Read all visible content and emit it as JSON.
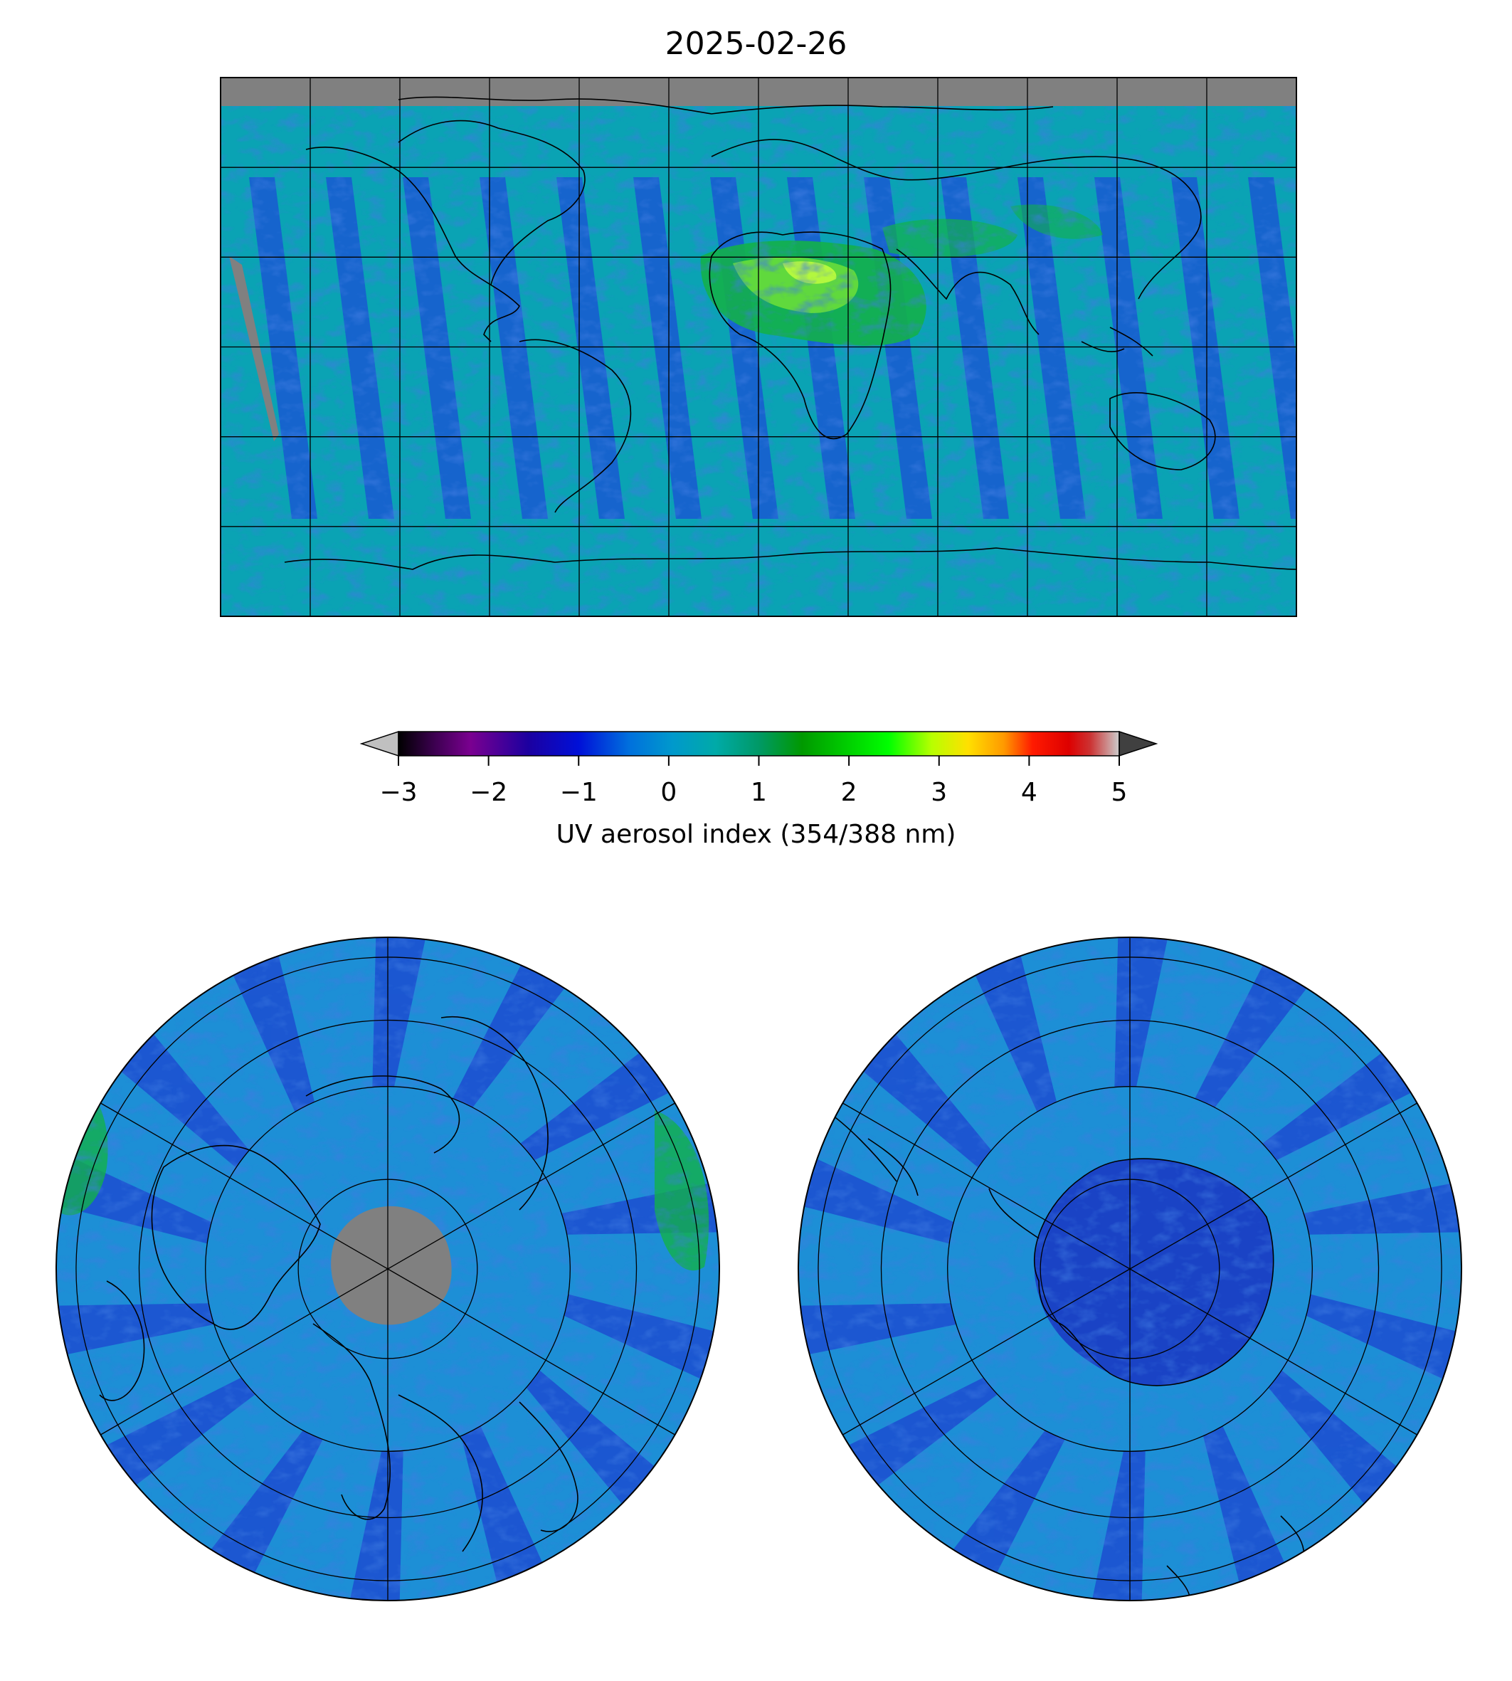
{
  "figure": {
    "title": "2025-02-26"
  },
  "colorbar": {
    "label": "UV aerosol index (354/388 nm)",
    "vmin": -3,
    "vmax": 5,
    "extend": "both",
    "under_color": "#c0c0c0",
    "over_color": "#404040",
    "ticks": [
      {
        "value": -3,
        "label": "−3"
      },
      {
        "value": -2,
        "label": "−2"
      },
      {
        "value": -1,
        "label": "−1"
      },
      {
        "value": 0,
        "label": "0"
      },
      {
        "value": 1,
        "label": "1"
      },
      {
        "value": 2,
        "label": "2"
      },
      {
        "value": 3,
        "label": "3"
      },
      {
        "value": 4,
        "label": "4"
      },
      {
        "value": 5,
        "label": "5"
      }
    ],
    "colormap": "nipy_spectral"
  },
  "maps": {
    "global": {
      "projection": "plate-carree",
      "no_data_color": "#808080",
      "grid": true
    },
    "north_polar": {
      "projection": "north-polar-stereographic",
      "no_data_color": "#808080",
      "grid": true
    },
    "south_polar": {
      "projection": "south-polar-stereographic",
      "grid": true
    }
  },
  "colors": {
    "background_field": "#0aa3b4",
    "low_field": "#1b4fd6",
    "very_low_field": "#1c1ca8",
    "moderate_field": "#13b04a",
    "high_field": "#9aef3a",
    "coastline": "#000000"
  }
}
